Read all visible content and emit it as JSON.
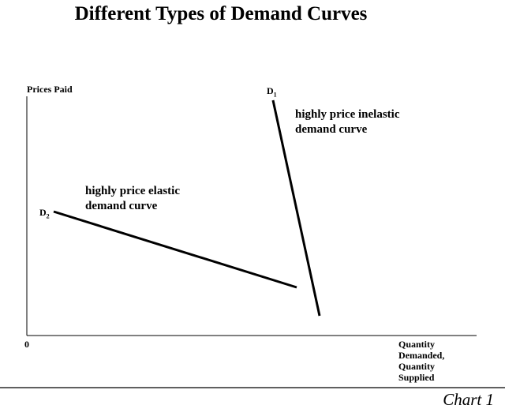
{
  "title": "Different Types of Demand Curves",
  "axes": {
    "y_label": "Prices Paid",
    "x_label": "Quantity\nDemanded,\nQuantity\nSupplied",
    "origin_label": "0"
  },
  "curves": [
    {
      "id": "D1",
      "label": "D",
      "subscript": "1",
      "description": "highly price inelastic\ndemand curve"
    },
    {
      "id": "D2",
      "label": "D",
      "subscript": "2",
      "description": "highly price elastic\ndemand curve"
    }
  ],
  "caption": "Chart 1"
}
